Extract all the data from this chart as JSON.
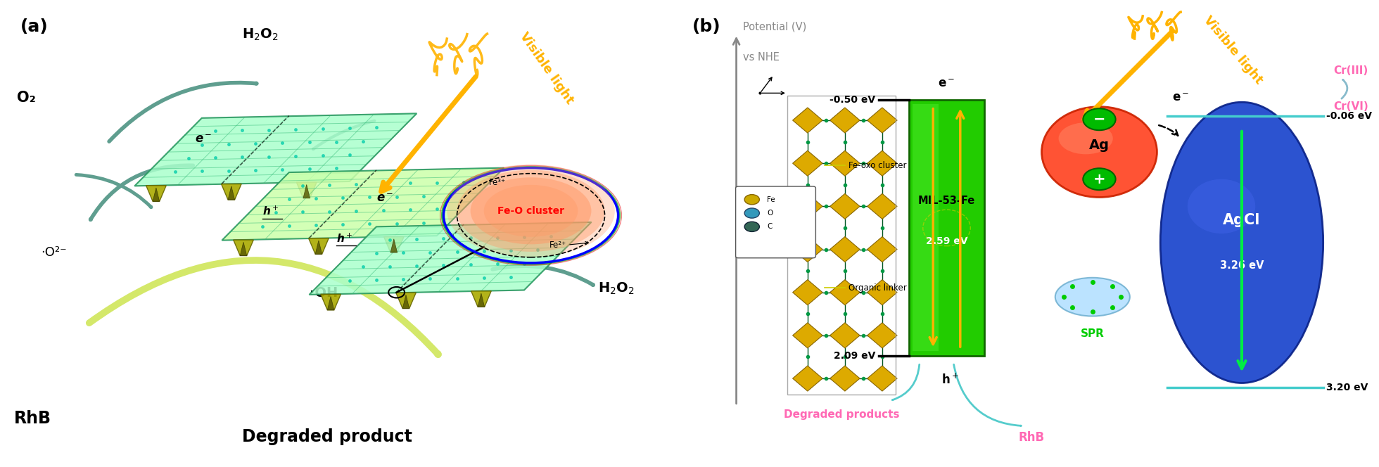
{
  "panel_a": {
    "label": "(a)",
    "visible_light_text": "Visible light",
    "visible_light_color": "#FFB300",
    "o2_label": "O₂",
    "oh_label": "·OH",
    "o2_radical_label": "·O²⁻",
    "rhb_label": "RhB",
    "degraded_label": "Degraded product",
    "fe_o_cluster_label": "Fe-O cluster",
    "fe3_label": "Fe³⁺",
    "fe2_label": "Fe²⁺",
    "arrow_color": "#5F9E8F",
    "yellowgreen_arrow": "#D4E86A",
    "sheet_colors": [
      "#B8F0D0",
      "#98E8B8",
      "#78DCA0"
    ],
    "sheet_grid_color": "#228855",
    "sheet_edge_color": "#228855",
    "diamond_color": "#CCCC00",
    "cluster_fill": "#FF9966",
    "cluster_border_blue": "#0000FF",
    "cluster_border_green": "#00AA00",
    "cluster_border_red": "#FF0000"
  },
  "panel_b": {
    "label": "(b)",
    "potential_label": "Potential (V)",
    "vs_nhe_label": "vs NHE",
    "visible_light_text": "Visible light",
    "visible_light_color": "#FFB300",
    "mil53_label": "MIL-53-Fe",
    "mil53_bandgap": "2.59 eV",
    "mil53_color": "#22CC00",
    "agcl_label": "AgCl",
    "agcl_bandgap": "3.26 eV",
    "agcl_color": "#1A44CC",
    "ag_label": "Ag",
    "ag_color": "#FF4400",
    "spr_label": "SPR",
    "spr_color": "#00CC00",
    "cb_mil53": "-0.50 eV",
    "vb_mil53": "2.09 eV",
    "cb_agcl": "-0.06 eV",
    "vb_agcl": "3.20 eV",
    "degraded_label": "Degraded products",
    "degraded_color": "#FF69B4",
    "rhb_label": "RhB",
    "rhb_color": "#FF69B4",
    "cri_label": "Cr(III)",
    "cri_color": "#FF69B4",
    "crvi_label": "Cr(VI)",
    "crvi_color": "#FF69B4",
    "fe_oxo_label": "Fe-oxo cluster",
    "organic_linker_label": "Organic linker",
    "arrow_up_color": "#FFB300",
    "level_line_color": "#000000",
    "agcl_level_color": "#44CCCC",
    "arrow_green": "#00CC44",
    "mof_diamond_color": "#CCAA00",
    "mof_dot_color": "#006600"
  }
}
